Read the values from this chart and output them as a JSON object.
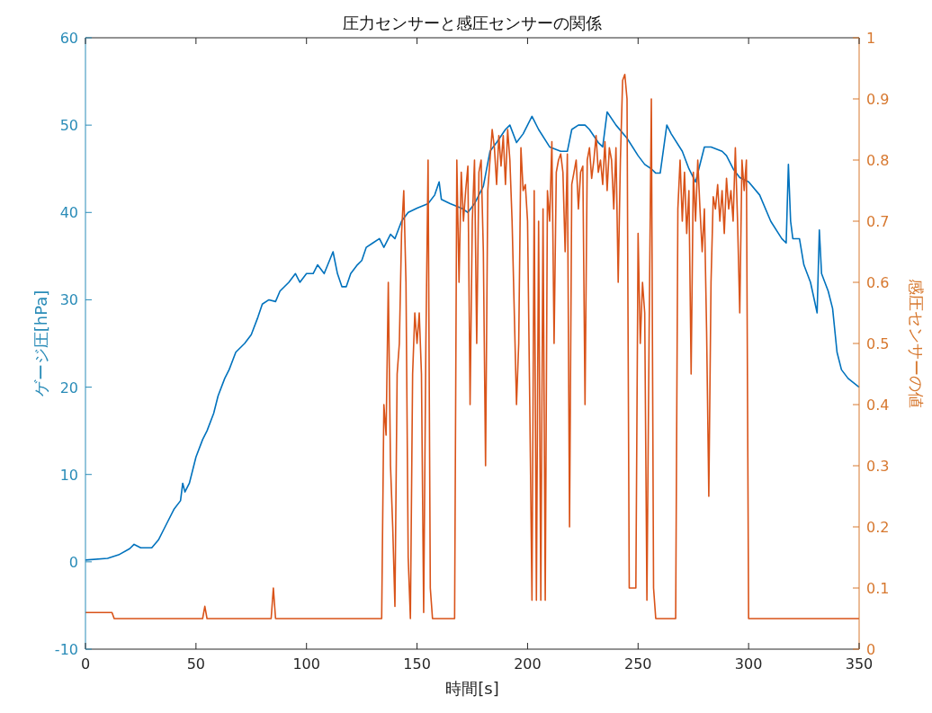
{
  "chart_data": {
    "type": "line",
    "title": "圧力センサーと感圧センサーの関係",
    "xlabel": "時間[s]",
    "ylabel": "ゲージ圧[hPa]",
    "y2label": "感圧センサーの値",
    "xlim": [
      0,
      350
    ],
    "xticks": [
      0,
      50,
      100,
      150,
      200,
      250,
      300,
      350
    ],
    "ylim": [
      -10,
      60
    ],
    "yticks": [
      -10,
      0,
      10,
      20,
      30,
      40,
      50,
      60
    ],
    "y2lim": [
      0,
      1
    ],
    "y2ticks": [
      0,
      0.1,
      0.2,
      0.3,
      0.4,
      0.5,
      0.6,
      0.7,
      0.8,
      0.9,
      1
    ],
    "grid": false,
    "series": [
      {
        "color": "#0072bd",
        "axis": "y",
        "x": [
          0,
          10,
          15,
          20,
          22,
          25,
          30,
          33,
          36,
          40,
          43,
          44,
          45,
          47,
          50,
          53,
          55,
          58,
          60,
          63,
          65,
          68,
          72,
          75,
          78,
          80,
          83,
          86,
          88,
          92,
          95,
          97,
          100,
          103,
          105,
          108,
          112,
          114,
          116,
          118,
          120,
          123,
          125,
          127,
          130,
          133,
          135,
          138,
          140,
          143,
          146,
          150,
          155,
          158,
          160,
          161,
          165,
          170,
          173,
          176,
          178,
          180,
          183,
          186,
          190,
          192,
          195,
          198,
          202,
          205,
          210,
          215,
          218,
          220,
          223,
          226,
          228,
          232,
          234,
          236,
          240,
          245,
          250,
          253,
          256,
          258,
          260,
          263,
          265,
          270,
          273,
          276,
          280,
          283,
          288,
          290,
          293,
          296,
          300,
          305,
          310,
          315,
          317,
          318,
          319,
          320,
          323,
          325,
          328,
          331,
          332,
          333,
          336,
          338,
          340,
          342,
          345,
          350
        ],
        "values": [
          0.2,
          0.4,
          0.8,
          1.5,
          2,
          1.6,
          1.6,
          2.5,
          4,
          6,
          7,
          9,
          8,
          9,
          12,
          14,
          15,
          17,
          19,
          21,
          22,
          24,
          25,
          26,
          28,
          29.5,
          30,
          29.8,
          31,
          32,
          33,
          32,
          33,
          33,
          34,
          33,
          35.5,
          33,
          31.5,
          31.5,
          33,
          34,
          34.5,
          36,
          36.5,
          37,
          36,
          37.5,
          37,
          39,
          40,
          40.5,
          41,
          42,
          43.5,
          41.5,
          41,
          40.5,
          40,
          41,
          42,
          43,
          47,
          48,
          49.5,
          50,
          48,
          49,
          51,
          49.5,
          47.5,
          47,
          47,
          49.5,
          50,
          50,
          49.5,
          48,
          47.5,
          51.5,
          50,
          48.5,
          46.5,
          45.5,
          45,
          44.5,
          44.5,
          50,
          49,
          47,
          45,
          43.5,
          47.5,
          47.5,
          47,
          46.5,
          45,
          44,
          43.5,
          42,
          39,
          37,
          36.5,
          45.5,
          39,
          37,
          37,
          34,
          32,
          28.5,
          38,
          33,
          31,
          29,
          24,
          22,
          21,
          20
        ]
      },
      {
        "color": "#d95319",
        "axis": "y2",
        "x": [
          0,
          12,
          13,
          53,
          54,
          55,
          84,
          85,
          86,
          134,
          135,
          136,
          137,
          138,
          139,
          140,
          141,
          142,
          143,
          144,
          145,
          146,
          147,
          148,
          149,
          150,
          151,
          152,
          153,
          154,
          155,
          156,
          157,
          167,
          168,
          169,
          170,
          171,
          172,
          173,
          174,
          175,
          176,
          177,
          178,
          179,
          180,
          181,
          182,
          183,
          184,
          185,
          186,
          187,
          188,
          189,
          190,
          191,
          192,
          193,
          194,
          195,
          196,
          197,
          198,
          199,
          200,
          201,
          202,
          203,
          204,
          205,
          206,
          207,
          208,
          209,
          210,
          211,
          212,
          213,
          214,
          215,
          216,
          217,
          218,
          219,
          220,
          221,
          222,
          223,
          224,
          225,
          226,
          227,
          228,
          229,
          230,
          231,
          232,
          233,
          234,
          235,
          236,
          237,
          238,
          239,
          240,
          241,
          242,
          243,
          244,
          245,
          246,
          249,
          250,
          251,
          252,
          253,
          254,
          255,
          256,
          257,
          258,
          267,
          268,
          269,
          270,
          271,
          272,
          273,
          274,
          275,
          276,
          277,
          278,
          279,
          280,
          281,
          282,
          283,
          284,
          285,
          286,
          287,
          288,
          289,
          290,
          291,
          292,
          293,
          294,
          295,
          296,
          297,
          298,
          299,
          300,
          350
        ],
        "values": [
          0.06,
          0.06,
          0.05,
          0.05,
          0.07,
          0.05,
          0.05,
          0.1,
          0.05,
          0.05,
          0.4,
          0.35,
          0.6,
          0.3,
          0.2,
          0.07,
          0.45,
          0.5,
          0.68,
          0.75,
          0.6,
          0.15,
          0.05,
          0.45,
          0.55,
          0.5,
          0.55,
          0.45,
          0.06,
          0.5,
          0.8,
          0.1,
          0.05,
          0.05,
          0.8,
          0.6,
          0.78,
          0.7,
          0.75,
          0.79,
          0.4,
          0.7,
          0.8,
          0.5,
          0.78,
          0.8,
          0.65,
          0.3,
          0.75,
          0.8,
          0.85,
          0.82,
          0.76,
          0.84,
          0.79,
          0.84,
          0.76,
          0.85,
          0.8,
          0.7,
          0.55,
          0.4,
          0.5,
          0.82,
          0.75,
          0.76,
          0.7,
          0.4,
          0.08,
          0.75,
          0.08,
          0.7,
          0.08,
          0.72,
          0.08,
          0.75,
          0.7,
          0.83,
          0.5,
          0.78,
          0.8,
          0.81,
          0.78,
          0.65,
          0.81,
          0.2,
          0.76,
          0.78,
          0.8,
          0.72,
          0.78,
          0.79,
          0.4,
          0.8,
          0.82,
          0.77,
          0.8,
          0.84,
          0.78,
          0.8,
          0.76,
          0.83,
          0.75,
          0.82,
          0.8,
          0.72,
          0.82,
          0.6,
          0.8,
          0.93,
          0.94,
          0.9,
          0.1,
          0.1,
          0.68,
          0.5,
          0.6,
          0.55,
          0.08,
          0.52,
          0.9,
          0.1,
          0.05,
          0.05,
          0.72,
          0.8,
          0.7,
          0.78,
          0.68,
          0.75,
          0.45,
          0.78,
          0.7,
          0.8,
          0.72,
          0.65,
          0.72,
          0.52,
          0.25,
          0.6,
          0.74,
          0.72,
          0.76,
          0.7,
          0.75,
          0.68,
          0.77,
          0.72,
          0.75,
          0.7,
          0.82,
          0.7,
          0.55,
          0.8,
          0.75,
          0.8,
          0.05,
          0.05
        ]
      }
    ]
  }
}
